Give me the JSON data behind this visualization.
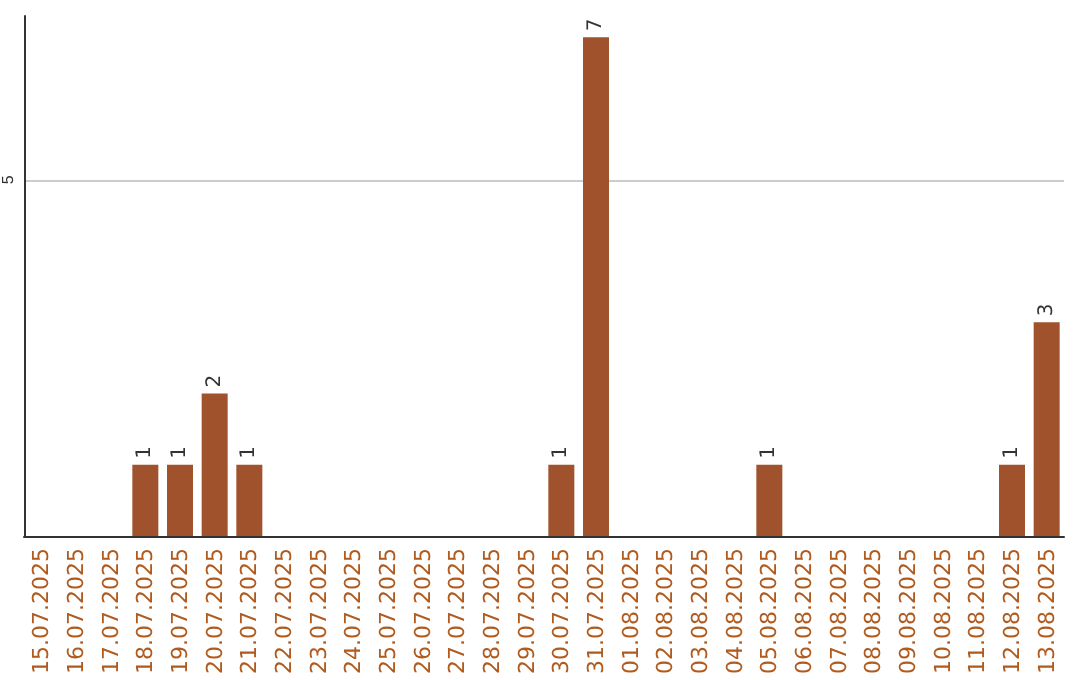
{
  "chart_data": {
    "type": "bar",
    "categories": [
      "15.07.2025",
      "16.07.2025",
      "17.07.2025",
      "18.07.2025",
      "19.07.2025",
      "20.07.2025",
      "21.07.2025",
      "22.07.2025",
      "23.07.2025",
      "24.07.2025",
      "25.07.2025",
      "26.07.2025",
      "27.07.2025",
      "28.07.2025",
      "29.07.2025",
      "30.07.2025",
      "31.07.2025",
      "01.08.2025",
      "02.08.2025",
      "03.08.2025",
      "04.08.2025",
      "05.08.2025",
      "06.08.2025",
      "07.08.2025",
      "08.08.2025",
      "09.08.2025",
      "10.08.2025",
      "11.08.2025",
      "12.08.2025",
      "13.08.2025"
    ],
    "values": [
      0,
      0,
      0,
      1,
      1,
      2,
      1,
      0,
      0,
      0,
      0,
      0,
      0,
      0,
      0,
      1,
      7,
      0,
      0,
      0,
      0,
      1,
      0,
      0,
      0,
      0,
      0,
      0,
      1,
      3
    ],
    "value_labels": [
      null,
      null,
      null,
      "1",
      "1",
      "2",
      "1",
      null,
      null,
      null,
      null,
      null,
      null,
      null,
      null,
      "1",
      "7",
      null,
      null,
      null,
      null,
      "1",
      null,
      null,
      null,
      null,
      null,
      null,
      "1",
      "3"
    ],
    "color": "#a0522d",
    "ylim": [
      0,
      7.3
    ],
    "yticks": [
      5
    ],
    "grid": "y"
  }
}
